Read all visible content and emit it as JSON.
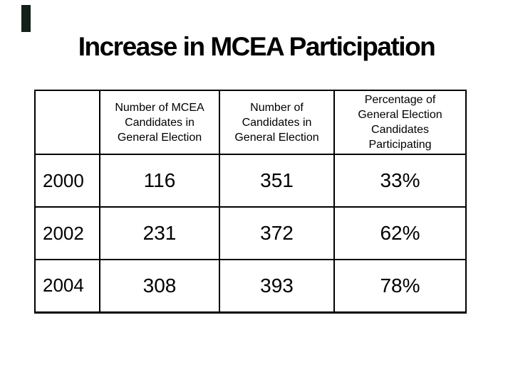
{
  "slide": {
    "title": "Increase in MCEA Participation",
    "background_color": "#ffffff",
    "text_color": "#000000",
    "accent_bar_color": "#142019"
  },
  "table": {
    "border_color": "#000000",
    "corner_label": "",
    "columns": [
      "Number of MCEA Candidates in General Election",
      "Number of Candidates in General Election",
      "Percentage of General Election Candidates Participating"
    ],
    "rows": [
      {
        "year": "2000",
        "values": [
          "116",
          "351",
          "33%"
        ]
      },
      {
        "year": "2002",
        "values": [
          "231",
          "372",
          "62%"
        ]
      },
      {
        "year": "2004",
        "values": [
          "308",
          "393",
          "78%"
        ]
      }
    ]
  }
}
